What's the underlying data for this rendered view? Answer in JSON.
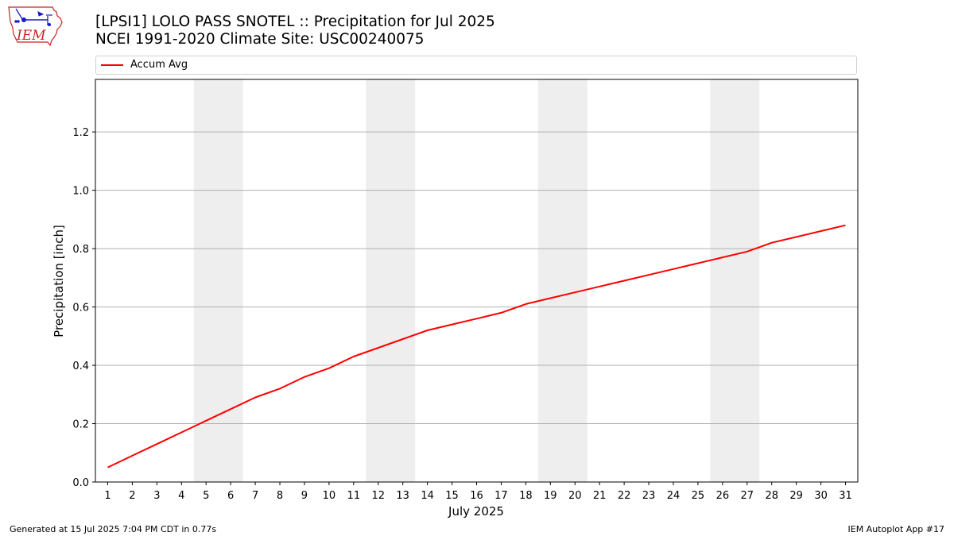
{
  "header": {
    "title_line1": "[LPSI1] LOLO PASS SNOTEL :: Precipitation for Jul 2025",
    "title_line2": "NCEI 1991-2020 Climate Site: USC00240075",
    "logo_text": "IEM"
  },
  "footer": {
    "left": "Generated at 15 Jul 2025 7:04 PM CDT in 0.77s",
    "right": "IEM Autoplot App #17"
  },
  "colors": {
    "line": "#ff0000",
    "weekend_band": "#eeeeee",
    "grid": "#b0b0b0",
    "logo_red": "#cc2222",
    "logo_blue": "#1a1acc"
  },
  "chart_data": {
    "type": "line",
    "xlabel": "July 2025",
    "ylabel": "Precipitation [inch]",
    "x": [
      1,
      2,
      3,
      4,
      5,
      6,
      7,
      8,
      9,
      10,
      11,
      12,
      13,
      14,
      15,
      16,
      17,
      18,
      19,
      20,
      21,
      22,
      23,
      24,
      25,
      26,
      27,
      28,
      29,
      30,
      31
    ],
    "xlim": [
      0.5,
      31.5
    ],
    "ylim": [
      0,
      1.38
    ],
    "yticks": [
      0.0,
      0.2,
      0.4,
      0.6,
      0.8,
      1.0,
      1.2
    ],
    "ytick_labels": [
      "0.0",
      "0.2",
      "0.4",
      "0.6",
      "0.8",
      "1.0",
      "1.2"
    ],
    "grid": "horizontal",
    "legend": "top",
    "weekend_bands": [
      [
        5,
        6
      ],
      [
        12,
        13
      ],
      [
        19,
        20
      ],
      [
        26,
        27
      ]
    ],
    "series": [
      {
        "name": "Accum Avg",
        "color": "#ff0000",
        "values": [
          0.05,
          0.09,
          0.13,
          0.17,
          0.21,
          0.25,
          0.29,
          0.32,
          0.36,
          0.39,
          0.43,
          0.46,
          0.49,
          0.52,
          0.54,
          0.56,
          0.58,
          0.61,
          0.63,
          0.65,
          0.67,
          0.69,
          0.71,
          0.73,
          0.75,
          0.77,
          0.79,
          0.82,
          0.84,
          0.86,
          0.88
        ]
      }
    ]
  }
}
